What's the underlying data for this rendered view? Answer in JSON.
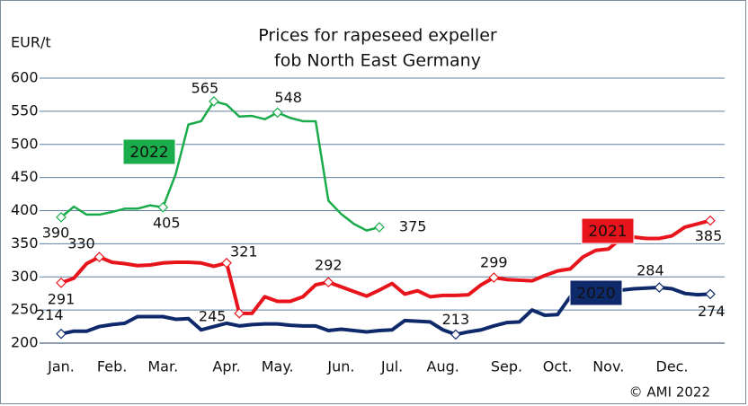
{
  "chart_data": {
    "type": "line",
    "title": "Prices for rapeseed expeller",
    "subtitle": "fob North East Germany",
    "y_label": "EUR/t",
    "source": "© AMI 2022",
    "categories": [
      "Jan.",
      null,
      null,
      null,
      "Feb.",
      null,
      null,
      null,
      "Mar.",
      null,
      null,
      null,
      null,
      "Apr.",
      null,
      null,
      null,
      "May.",
      null,
      null,
      null,
      null,
      "Jun.",
      null,
      null,
      null,
      "Jul.",
      null,
      null,
      null,
      "Aug.",
      null,
      null,
      null,
      null,
      "Sep.",
      null,
      null,
      null,
      "Oct.",
      null,
      null,
      null,
      "Nov.",
      null,
      null,
      null,
      null,
      "Dec.",
      null,
      null,
      null
    ],
    "ylim": [
      200,
      600
    ],
    "yticks": [
      200,
      250,
      300,
      350,
      400,
      450,
      500,
      550,
      600
    ],
    "grid": true,
    "series": [
      {
        "name": "2022",
        "color": "#1aab4b",
        "values": [
          390,
          406,
          394,
          394,
          398,
          403,
          403,
          408,
          405,
          455,
          530,
          535,
          565,
          560,
          542,
          543,
          538,
          548,
          540,
          535,
          535,
          415,
          395,
          380,
          370,
          375,
          null,
          null,
          null,
          null,
          null,
          null,
          null,
          null,
          null,
          null,
          null,
          null,
          null,
          null,
          null,
          null,
          null,
          null,
          null,
          null,
          null,
          null,
          null,
          null,
          null,
          null
        ],
        "value_labels": [
          "390",
          null,
          null,
          null,
          null,
          null,
          null,
          null,
          "405",
          null,
          null,
          null,
          "565",
          null,
          null,
          null,
          null,
          "548",
          null,
          null,
          null,
          null,
          null,
          null,
          null,
          "375",
          null,
          null,
          null,
          null,
          null,
          null,
          null,
          null,
          null,
          null,
          null,
          null,
          null,
          null,
          null,
          null,
          null,
          null,
          null,
          null,
          null,
          null,
          null,
          null,
          null,
          null
        ]
      },
      {
        "name": "2021",
        "color": "#e8141b",
        "values": [
          291,
          298,
          320,
          330,
          322,
          320,
          317,
          318,
          321,
          322,
          322,
          321,
          316,
          321,
          245,
          245,
          270,
          263,
          263,
          270,
          288,
          292,
          285,
          278,
          271,
          280,
          290,
          274,
          279,
          270,
          272,
          272,
          273,
          288,
          299,
          296,
          295,
          294,
          302,
          309,
          312,
          330,
          340,
          342,
          358,
          360,
          358,
          358,
          362,
          375,
          380,
          385
        ],
        "value_labels": [
          "291",
          null,
          null,
          "330",
          null,
          null,
          null,
          null,
          null,
          null,
          null,
          null,
          null,
          "321",
          "245",
          null,
          null,
          null,
          null,
          null,
          null,
          "292",
          null,
          null,
          null,
          null,
          null,
          null,
          null,
          null,
          null,
          null,
          null,
          null,
          "299",
          null,
          null,
          null,
          null,
          null,
          null,
          null,
          null,
          null,
          null,
          null,
          null,
          null,
          null,
          null,
          null,
          "385"
        ]
      },
      {
        "name": "2020",
        "color": "#0f2a6b",
        "values": [
          214,
          218,
          218,
          225,
          228,
          230,
          240,
          240,
          240,
          236,
          237,
          220,
          225,
          230,
          226,
          228,
          229,
          229,
          227,
          226,
          226,
          219,
          221,
          219,
          217,
          219,
          220,
          234,
          233,
          232,
          220,
          213,
          217,
          220,
          226,
          231,
          232,
          250,
          242,
          243,
          270,
          272,
          277,
          278,
          280,
          282,
          283,
          284,
          282,
          275,
          273,
          274
        ],
        "value_labels": [
          "214",
          null,
          null,
          null,
          null,
          null,
          null,
          null,
          null,
          null,
          null,
          null,
          null,
          null,
          null,
          null,
          null,
          null,
          null,
          null,
          null,
          null,
          null,
          null,
          null,
          null,
          null,
          null,
          null,
          null,
          null,
          "213",
          null,
          null,
          null,
          null,
          null,
          null,
          null,
          null,
          null,
          null,
          null,
          null,
          null,
          null,
          null,
          "284",
          null,
          null,
          null,
          "274"
        ]
      }
    ]
  }
}
